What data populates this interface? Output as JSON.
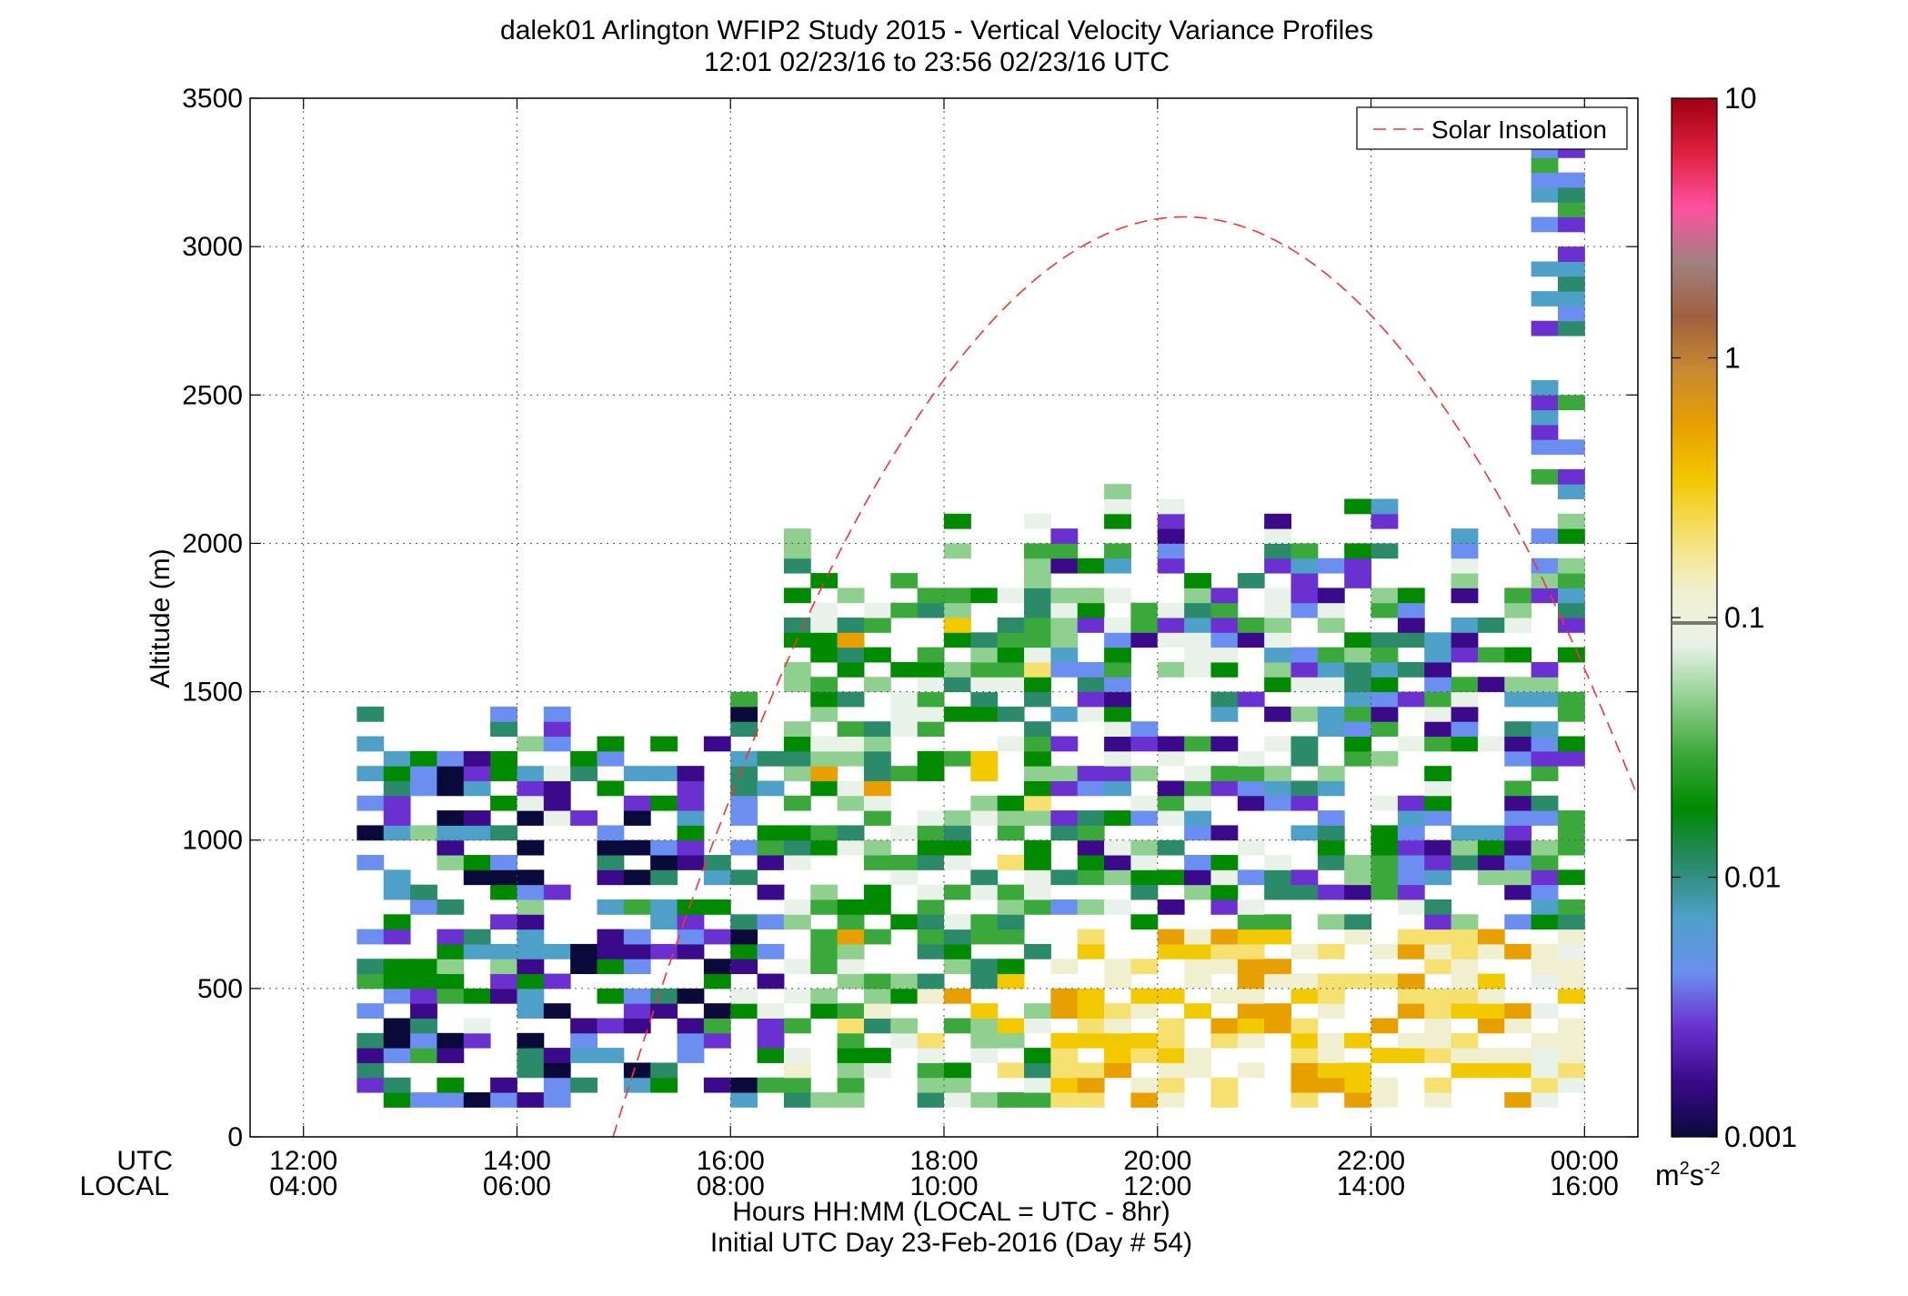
{
  "chart_data": {
    "type": "heatmap",
    "title_line1": "dalek01 Arlington WFIP2 Study 2015 - Vertical Velocity Variance Profiles",
    "title_line2": "12:01 02/23/16 to 23:56 02/23/16  UTC",
    "ylabel": "Altitude (m)",
    "xlabel_line1": "Hours HH:MM  (LOCAL = UTC - 8hr)",
    "xlabel_line2": "Initial UTC Day 23-Feb-2016 (Day # 54)",
    "row_label_utc": "UTC",
    "row_label_local": "LOCAL",
    "x_range_hours": [
      11.5,
      24.5
    ],
    "ylim": [
      0,
      3500
    ],
    "grid": "dotted",
    "x_ticks_utc": [
      "12:00",
      "14:00",
      "16:00",
      "18:00",
      "20:00",
      "22:00",
      "00:00"
    ],
    "x_ticks_local": [
      "04:00",
      "06:00",
      "08:00",
      "10:00",
      "12:00",
      "14:00",
      "16:00"
    ],
    "x_tick_hours": [
      12,
      14,
      16,
      18,
      20,
      22,
      24
    ],
    "y_ticks": [
      "0",
      "500",
      "1000",
      "1500",
      "2000",
      "2500",
      "3000",
      "3500"
    ],
    "y_tick_values": [
      0,
      500,
      1000,
      1500,
      2000,
      2500,
      3000,
      3500
    ],
    "legend": {
      "entry": "Solar Insolation",
      "placement": "top-right",
      "color": "#ff3030"
    },
    "colorbar": {
      "scale": "log",
      "range": [
        0.001,
        10
      ],
      "ticks": [
        "10",
        "1",
        "0.1",
        "0.01",
        "0.001"
      ],
      "tick_values": [
        10,
        1,
        0.1,
        0.01,
        0.001
      ],
      "unit_base": "m",
      "unit_sup1": "2",
      "unit_mid": "s",
      "unit_sup2": "-2",
      "palette": [
        "#0a0a3a",
        "#3a0a8a",
        "#6a30d0",
        "#6a8ff0",
        "#4fa0c8",
        "#2a8a6a",
        "#008a00",
        "#3aa83a",
        "#8fcf8f",
        "#e8f2e8",
        "#f0f0d0",
        "#f5e070",
        "#f2c800",
        "#e8a000",
        "#c88a30",
        "#a06040",
        "#a08080",
        "#ff50a0",
        "#e02040",
        "#a00010"
      ]
    },
    "solar_insolation": {
      "peak_hour": 20.25,
      "peak_altitude": 3100,
      "zero_hours": [
        14.9,
        25.6
      ]
    },
    "grid_cells": {
      "time_start_hour": 12.5,
      "time_end_hour": 24.0,
      "time_step_hours": 0.25,
      "alt_start_m": 100,
      "alt_step_m": 50
    }
  }
}
